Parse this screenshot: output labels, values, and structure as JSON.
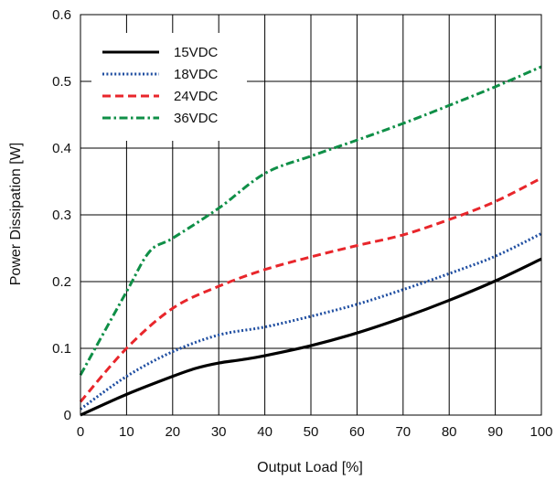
{
  "chart_data": {
    "type": "line",
    "title": "",
    "xlabel": "Output Load [%]",
    "ylabel": "Power Dissipation [W]",
    "xlim": [
      0,
      100
    ],
    "ylim": [
      0,
      0.6
    ],
    "x_ticks": [
      0,
      10,
      20,
      30,
      40,
      50,
      60,
      70,
      80,
      90,
      100
    ],
    "y_ticks": [
      0,
      0.1,
      0.2,
      0.3,
      0.4,
      0.5,
      0.6
    ],
    "x_tick_labels": [
      "0",
      "10",
      "20",
      "30",
      "40",
      "50",
      "60",
      "70",
      "80",
      "90",
      "100"
    ],
    "y_tick_labels": [
      "0",
      "0.1",
      "0.2",
      "0.3",
      "0.4",
      "0.5",
      "0.6"
    ],
    "grid": true,
    "legend_position": "top-left",
    "series": [
      {
        "name": "15VDC",
        "color": "#000000",
        "style": "solid",
        "x": [
          0,
          10,
          20,
          25,
          30,
          35,
          40,
          50,
          60,
          70,
          80,
          90,
          100
        ],
        "y": [
          0.0,
          0.031,
          0.058,
          0.07,
          0.078,
          0.083,
          0.089,
          0.104,
          0.123,
          0.146,
          0.172,
          0.201,
          0.234
        ]
      },
      {
        "name": "18VDC",
        "color": "#1f4ea1",
        "style": "dotted",
        "x": [
          0,
          10,
          20,
          30,
          40,
          50,
          60,
          70,
          80,
          90,
          100
        ],
        "y": [
          0.009,
          0.058,
          0.095,
          0.12,
          0.132,
          0.148,
          0.166,
          0.188,
          0.212,
          0.238,
          0.272
        ]
      },
      {
        "name": "24VDC",
        "color": "#e8262b",
        "style": "dashed",
        "x": [
          0,
          10,
          20,
          30,
          40,
          50,
          60,
          70,
          80,
          90,
          100
        ],
        "y": [
          0.02,
          0.1,
          0.16,
          0.193,
          0.218,
          0.237,
          0.254,
          0.27,
          0.293,
          0.32,
          0.355
        ]
      },
      {
        "name": "36VDC",
        "color": "#0f8f47",
        "style": "dashdot",
        "x": [
          0,
          10,
          15,
          20,
          30,
          40,
          50,
          60,
          70,
          80,
          90,
          100
        ],
        "y": [
          0.06,
          0.185,
          0.245,
          0.265,
          0.31,
          0.362,
          0.388,
          0.412,
          0.437,
          0.464,
          0.492,
          0.522
        ]
      }
    ]
  }
}
